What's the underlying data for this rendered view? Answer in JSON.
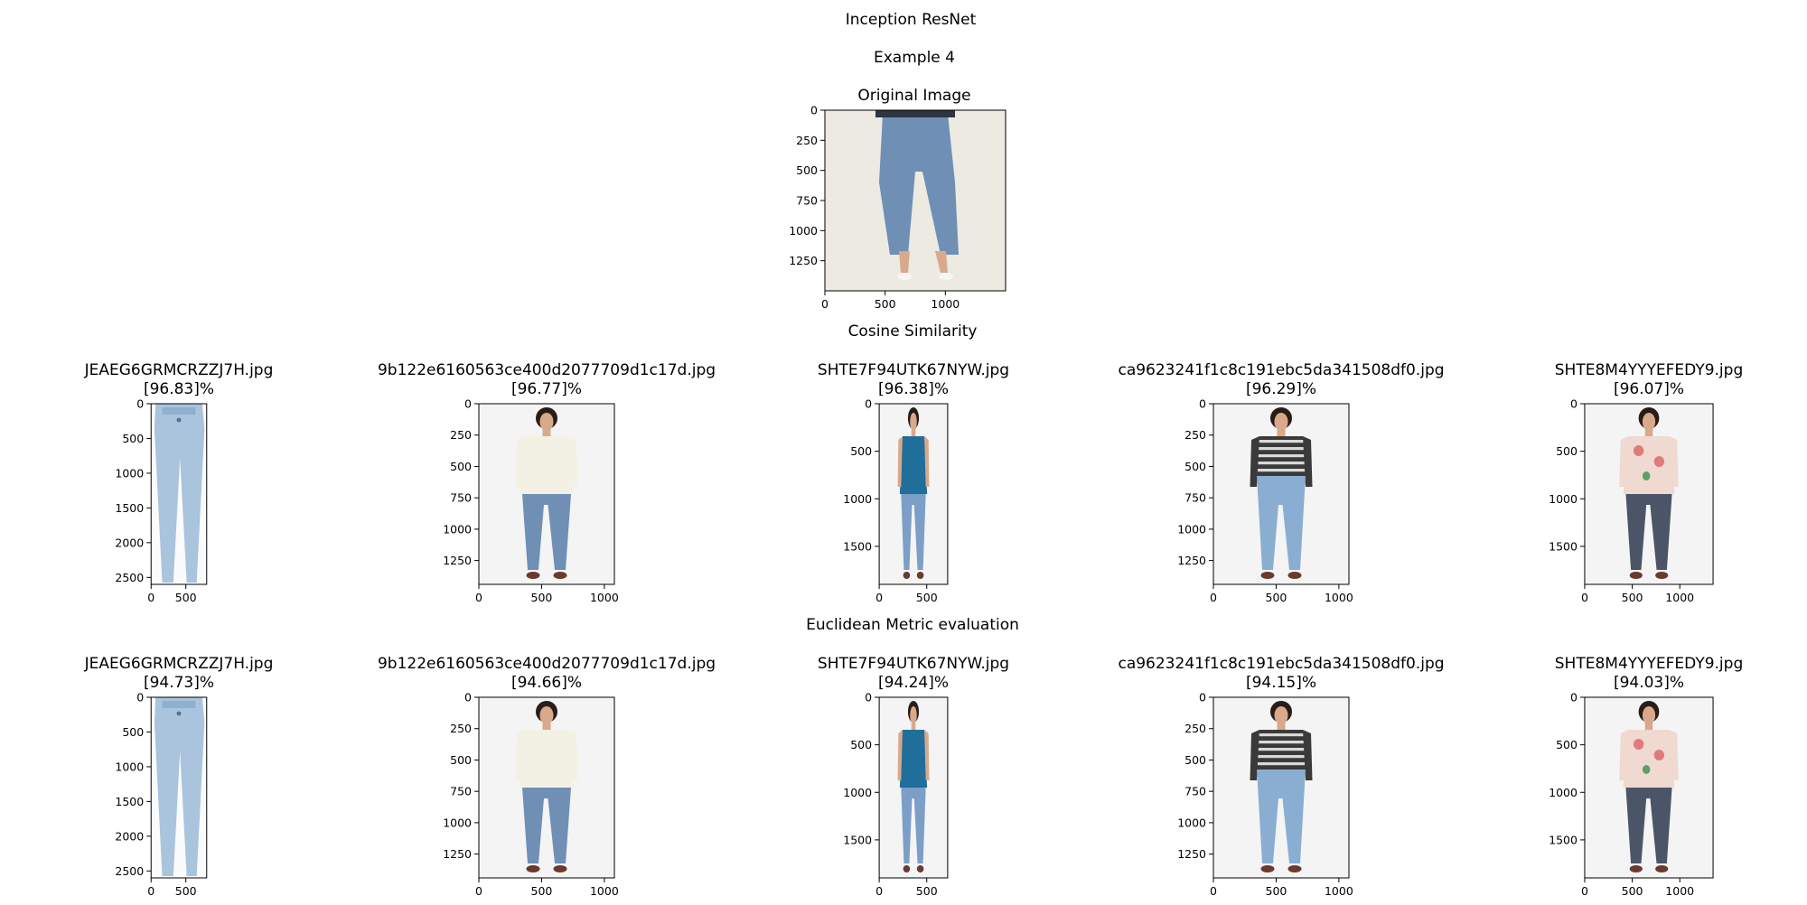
{
  "figure": {
    "title": "Inception ResNet",
    "example": "Example 4",
    "original_title": "Original Image",
    "cosine_title": "Cosine Similarity",
    "euclid_title": "Euclidean Metric evaluation"
  },
  "original": {
    "x_ticks": [
      "0",
      "500",
      "1000"
    ],
    "y_ticks": [
      "0",
      "250",
      "500",
      "750",
      "1000",
      "1250"
    ],
    "image_size": [
      1500,
      1500
    ],
    "content": "jeans-on-model"
  },
  "cosine": [
    {
      "filename": "JEAEG6GRMCRZZJ7H.jpg",
      "score": "[96.83]%",
      "image_size": [
        800,
        2600
      ],
      "x_ticks": [
        "0",
        "500"
      ],
      "y_ticks": [
        "0",
        "500",
        "1000",
        "1500",
        "2000",
        "2500"
      ],
      "content": "jeans"
    },
    {
      "filename": "9b122e6160563ce400d2077709d1c17d.jpg",
      "score": "[96.77]%",
      "image_size": [
        1080,
        1440
      ],
      "x_ticks": [
        "0",
        "500",
        "1000"
      ],
      "y_ticks": [
        "0",
        "250",
        "500",
        "750",
        "1000",
        "1250"
      ],
      "content": "cream-top-jeans"
    },
    {
      "filename": "SHTE7F94UTK67NYW.jpg",
      "score": "[96.38]%",
      "image_size": [
        720,
        1900
      ],
      "x_ticks": [
        "0",
        "500"
      ],
      "y_ticks": [
        "0",
        "500",
        "1000",
        "1500"
      ],
      "content": "blue-shirt-jeans"
    },
    {
      "filename": "ca9623241f1c8c191ebc5da341508df0.jpg",
      "score": "[96.29]%",
      "image_size": [
        1080,
        1440
      ],
      "x_ticks": [
        "0",
        "500",
        "1000"
      ],
      "y_ticks": [
        "0",
        "250",
        "500",
        "750",
        "1000",
        "1250"
      ],
      "content": "striped-top-jeans"
    },
    {
      "filename": "SHTE8M4YYYEFEDY9.jpg",
      "score": "[96.07]%",
      "image_size": [
        1350,
        1900
      ],
      "x_ticks": [
        "0",
        "500",
        "1000"
      ],
      "y_ticks": [
        "0",
        "500",
        "1000",
        "1500"
      ],
      "content": "floral-top-jeans"
    }
  ],
  "euclidean": [
    {
      "filename": "JEAEG6GRMCRZZJ7H.jpg",
      "score": "[94.73]%",
      "image_size": [
        800,
        2600
      ],
      "x_ticks": [
        "0",
        "500"
      ],
      "y_ticks": [
        "0",
        "500",
        "1000",
        "1500",
        "2000",
        "2500"
      ],
      "content": "jeans"
    },
    {
      "filename": "9b122e6160563ce400d2077709d1c17d.jpg",
      "score": "[94.66]%",
      "image_size": [
        1080,
        1440
      ],
      "x_ticks": [
        "0",
        "500",
        "1000"
      ],
      "y_ticks": [
        "0",
        "250",
        "500",
        "750",
        "1000",
        "1250"
      ],
      "content": "cream-top-jeans"
    },
    {
      "filename": "SHTE7F94UTK67NYW.jpg",
      "score": "[94.24]%",
      "image_size": [
        720,
        1900
      ],
      "x_ticks": [
        "0",
        "500"
      ],
      "y_ticks": [
        "0",
        "500",
        "1000",
        "1500"
      ],
      "content": "blue-shirt-jeans"
    },
    {
      "filename": "ca9623241f1c8c191ebc5da341508df0.jpg",
      "score": "[94.15]%",
      "image_size": [
        1080,
        1440
      ],
      "x_ticks": [
        "0",
        "500",
        "1000"
      ],
      "y_ticks": [
        "0",
        "250",
        "500",
        "750",
        "1000",
        "1250"
      ],
      "content": "striped-top-jeans"
    },
    {
      "filename": "SHTE8M4YYYEFEDY9.jpg",
      "score": "[94.03]%",
      "image_size": [
        1350,
        1900
      ],
      "x_ticks": [
        "0",
        "500",
        "1000"
      ],
      "y_ticks": [
        "0",
        "500",
        "1000",
        "1500"
      ],
      "content": "floral-top-jeans"
    }
  ],
  "colors": {
    "denim_light": "#a9c4dc",
    "denim_mid": "#6f8fb5",
    "denim_dark": "#4c5568",
    "teal_shirt": "#1f6f9a",
    "cream_top": "#f3f1e4",
    "skin": "#d9a98c",
    "hair": "#2a1c17",
    "backdrop": "#eceae1"
  }
}
